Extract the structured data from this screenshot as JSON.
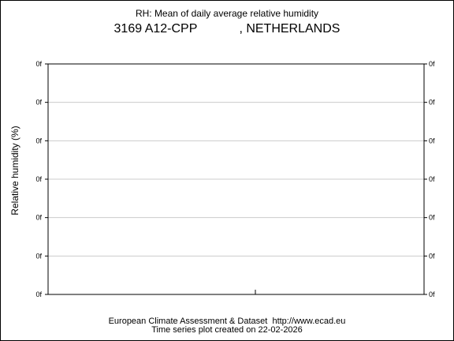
{
  "page": {
    "title_line1": "RH: Mean of daily average relative humidity",
    "title_line2": "3169 A12-CPP            , NETHERLANDS",
    "footer_line1": "European Climate Assessment & Dataset  http://www.ecad.eu",
    "footer_line2": "Time series plot created on 22-02-2026"
  },
  "chart_data": {
    "type": "line",
    "title": "RH: Mean of daily average relative humidity",
    "subtitle": "3169 A12-CPP            , NETHERLANDS",
    "xlabel": "",
    "ylabel": "Relative humidity (%)",
    "y_tick_labels": [
      "0f",
      "0f",
      "0f",
      "0f",
      "0f",
      "0f",
      "0f"
    ],
    "y_tick_labels_right": [
      "0f",
      "0f",
      "0f",
      "0f",
      "0f",
      "0f",
      "0f"
    ],
    "x_tick_labels": [],
    "series": [],
    "grid": true,
    "colors": {
      "grid": "#cccccc",
      "axis": "#000000"
    }
  }
}
